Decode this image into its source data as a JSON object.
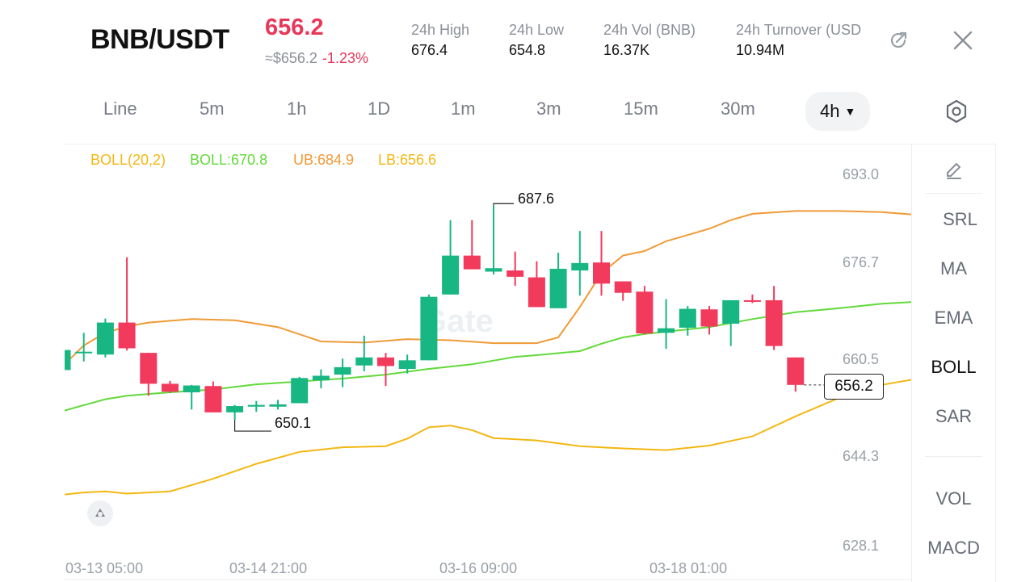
{
  "header": {
    "pair": "BNB/USDT",
    "last_price": "656.2",
    "usd_price": "≈$656.2",
    "change_pct": "-1.23%",
    "stats": [
      {
        "label": "24h  High",
        "value": "676.4"
      },
      {
        "label": "24h  Low",
        "value": "654.8"
      },
      {
        "label": "24h  Vol (BNB)",
        "value": "16.37K"
      },
      {
        "label": "24h  Turnover (USD",
        "value": "10.94M"
      }
    ],
    "icons": [
      "share-icon",
      "close-icon"
    ]
  },
  "timeframes": [
    "Line",
    "5m",
    "1h",
    "1D",
    "1m",
    "3m",
    "15m",
    "30m",
    "4h"
  ],
  "active_timeframe": "4h",
  "sidebar": {
    "items": [
      "SRL",
      "MA",
      "EMA",
      "BOLL",
      "SAR"
    ],
    "lower_items": [
      "VOL",
      "MACD"
    ],
    "active": "BOLL",
    "icons": [
      "pencil-icon",
      "settings-hex-icon"
    ]
  },
  "legend": {
    "boll_params": "BOLL(20,2)",
    "boll": "BOLL:670.8",
    "ub": "UB:684.9",
    "lb": "LB:656.6"
  },
  "colors": {
    "up": "#17b682",
    "down": "#f23a5d",
    "boll_mid": "#62d93a",
    "boll_ub": "#f09a36",
    "boll_lb": "#f3b712",
    "price_red": "#e8385a"
  },
  "watermark": "Gate",
  "chart_data": {
    "type": "candlestick",
    "y_ticks": [
      "693.0",
      "676.7",
      "660.5",
      "644.3",
      "628.1"
    ],
    "ylim": [
      628.1,
      693.0
    ],
    "x_ticks": [
      "03-13 05:00",
      "03-14 21:00",
      "03-16 09:00",
      "03-18 01:00"
    ],
    "current_price": "656.2",
    "high_marker": "687.6",
    "low_marker": "650.1",
    "ohlc": [
      [
        658.8,
        662.3,
        650.2,
        662.3
      ],
      [
        662.0,
        665.3,
        660.3,
        662.0
      ],
      [
        661.5,
        667.8,
        661.0,
        667.1
      ],
      [
        667.1,
        678.5,
        662.2,
        662.6
      ],
      [
        661.8,
        661.8,
        654.3,
        656.4
      ],
      [
        656.4,
        656.9,
        654.8,
        655.0
      ],
      [
        654.9,
        656.2,
        651.9,
        656.1
      ],
      [
        656.0,
        656.8,
        651.4,
        651.4
      ],
      [
        651.4,
        652.7,
        650.1,
        652.5
      ],
      [
        652.4,
        653.4,
        651.5,
        652.7
      ],
      [
        652.4,
        653.6,
        651.9,
        652.8
      ],
      [
        653.0,
        657.6,
        653.0,
        657.4
      ],
      [
        657.0,
        658.9,
        655.6,
        657.8
      ],
      [
        658.0,
        660.8,
        655.8,
        659.3
      ],
      [
        659.6,
        664.8,
        658.6,
        661.0
      ],
      [
        661.0,
        661.8,
        656.0,
        659.5
      ],
      [
        659.0,
        661.5,
        658.2,
        660.5
      ],
      [
        660.5,
        672.0,
        660.5,
        671.6
      ],
      [
        672.0,
        685.0,
        672.0,
        678.8
      ],
      [
        678.8,
        685.0,
        677.0,
        676.4
      ],
      [
        676.0,
        687.6,
        675.5,
        676.6
      ],
      [
        676.2,
        679.5,
        673.5,
        675.1
      ],
      [
        675.0,
        677.8,
        670.3,
        669.8
      ],
      [
        669.6,
        679.3,
        669.6,
        676.5
      ],
      [
        676.2,
        683.1,
        671.8,
        677.5
      ],
      [
        677.6,
        683.1,
        671.8,
        673.9
      ],
      [
        674.3,
        674.3,
        670.9,
        672.3
      ],
      [
        672.5,
        673.5,
        665.0,
        665.2
      ],
      [
        665.3,
        671.2,
        662.5,
        666.1
      ],
      [
        666.2,
        670.0,
        664.8,
        669.5
      ],
      [
        669.4,
        670.0,
        665.0,
        666.4
      ],
      [
        666.9,
        671.0,
        663.0,
        671.0
      ],
      [
        671.0,
        672.0,
        670.5,
        670.9
      ],
      [
        671.0,
        673.5,
        662.3,
        663.0
      ],
      [
        661.0,
        661.0,
        655.0,
        656.2
      ]
    ],
    "boll_ub": [
      [
        0,
        659.4
      ],
      [
        1,
        663.1
      ],
      [
        2,
        665.3
      ],
      [
        3,
        666.4
      ],
      [
        4,
        667.1
      ],
      [
        6,
        667.7
      ],
      [
        8,
        667.5
      ],
      [
        10,
        666.3
      ],
      [
        12,
        663.8
      ],
      [
        14,
        663.6
      ],
      [
        16,
        664.2
      ],
      [
        18,
        664.0
      ],
      [
        20,
        663.5
      ],
      [
        22,
        663.5
      ],
      [
        23,
        664.5
      ],
      [
        24,
        669.8
      ],
      [
        25,
        675.7
      ],
      [
        26,
        678.8
      ],
      [
        27,
        679.6
      ],
      [
        28,
        681.3
      ],
      [
        30,
        683.5
      ],
      [
        31,
        685.0
      ],
      [
        32,
        686.1
      ],
      [
        34,
        686.6
      ],
      [
        36,
        686.6
      ],
      [
        38,
        686.4
      ],
      [
        40,
        685.8
      ],
      [
        42,
        685.3
      ],
      [
        44,
        684.8
      ],
      [
        45,
        685.3
      ]
    ],
    "boll_mid": [
      [
        0,
        651.6
      ],
      [
        2,
        653.7
      ],
      [
        3,
        654.3
      ],
      [
        5,
        654.9
      ],
      [
        7,
        655.4
      ],
      [
        9,
        656.3
      ],
      [
        11,
        656.8
      ],
      [
        13,
        657.3
      ],
      [
        15,
        658.0
      ],
      [
        17,
        659.0
      ],
      [
        19,
        659.8
      ],
      [
        21,
        661.1
      ],
      [
        22,
        661.4
      ],
      [
        24,
        662.1
      ],
      [
        25,
        663.4
      ],
      [
        26,
        664.5
      ],
      [
        27,
        665.1
      ],
      [
        28,
        665.5
      ],
      [
        30,
        666.3
      ],
      [
        32,
        667.7
      ],
      [
        34,
        668.9
      ],
      [
        36,
        669.6
      ],
      [
        38,
        670.4
      ],
      [
        40,
        670.8
      ],
      [
        41,
        671.0
      ],
      [
        42,
        671.2
      ],
      [
        44,
        671.2
      ],
      [
        45,
        671.1
      ]
    ],
    "boll_lb": [
      [
        0,
        637.0
      ],
      [
        1,
        637.4
      ],
      [
        2,
        637.6
      ],
      [
        3,
        637.2
      ],
      [
        4,
        637.4
      ],
      [
        5,
        637.6
      ],
      [
        6,
        638.7
      ],
      [
        7,
        639.8
      ],
      [
        9,
        642.4
      ],
      [
        11,
        644.5
      ],
      [
        13,
        645.3
      ],
      [
        15,
        645.5
      ],
      [
        16,
        646.8
      ],
      [
        17,
        648.8
      ],
      [
        18,
        649.1
      ],
      [
        19,
        648.3
      ],
      [
        20,
        646.9
      ],
      [
        22,
        646.5
      ],
      [
        24,
        645.5
      ],
      [
        26,
        645.1
      ],
      [
        28,
        644.8
      ],
      [
        30,
        645.6
      ],
      [
        32,
        647.2
      ],
      [
        34,
        650.7
      ],
      [
        36,
        653.9
      ],
      [
        38,
        656.2
      ],
      [
        40,
        657.5
      ],
      [
        41,
        657.4
      ],
      [
        42,
        657.0
      ],
      [
        43,
        656.2
      ]
    ]
  }
}
